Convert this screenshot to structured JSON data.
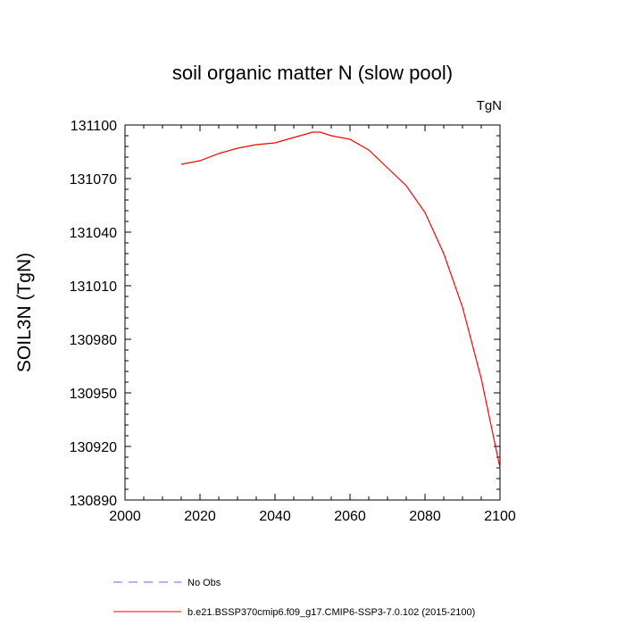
{
  "chart_data": {
    "type": "line",
    "title": "soil organic matter N (slow pool)",
    "units_label": "TgN",
    "ylabel": "SOIL3N  (TgN)",
    "xlabel": "",
    "xlim": [
      2000,
      2100
    ],
    "ylim": [
      130890,
      131100
    ],
    "x_ticks": [
      2000,
      2020,
      2040,
      2060,
      2080,
      2100
    ],
    "y_ticks": [
      130890,
      130920,
      130950,
      130980,
      131010,
      131040,
      131070,
      131100
    ],
    "grid": false,
    "legend_position": "bottom",
    "series": [
      {
        "name": "No Obs",
        "color": "#6666ff",
        "dash": "dashed",
        "x": [],
        "y": []
      },
      {
        "name": "b.e21.BSSP370cmip6.f09_g17.CMIP6-SSP3-7.0.102 (2015-2100)",
        "color": "#ff0000",
        "dash": "solid",
        "x": [
          2015,
          2020,
          2025,
          2030,
          2035,
          2040,
          2045,
          2050,
          2052,
          2055,
          2060,
          2065,
          2070,
          2075,
          2080,
          2085,
          2090,
          2095,
          2100
        ],
        "y": [
          131078,
          131080,
          131084,
          131087,
          131089,
          131090,
          131093,
          131096,
          131096,
          131094,
          131092,
          131086,
          131076,
          131066,
          131051,
          131028,
          130998,
          130958,
          130908
        ]
      }
    ]
  }
}
